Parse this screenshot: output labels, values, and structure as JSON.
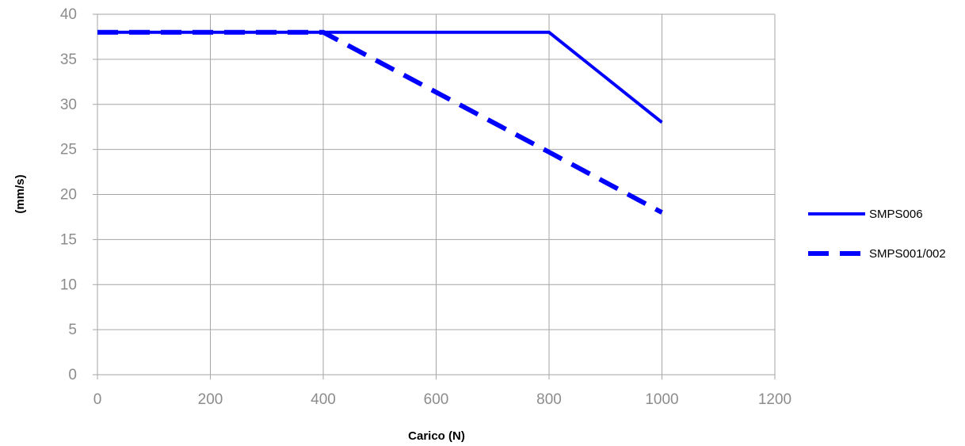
{
  "chart_data": {
    "type": "line",
    "title": "",
    "xlabel": "Carico (N)",
    "ylabel": "(mm/s)",
    "xlim": [
      0,
      1200
    ],
    "ylim": [
      0,
      40
    ],
    "xticks": [
      "0",
      "200",
      "400",
      "600",
      "800",
      "1000",
      "1200"
    ],
    "yticks": [
      "0",
      "5",
      "10",
      "15",
      "20",
      "25",
      "30",
      "35",
      "40"
    ],
    "grid": true,
    "legend_position": "right",
    "series": [
      {
        "name": "SMPS006",
        "style": "solid",
        "color": "#0000ff",
        "points": [
          [
            0,
            38
          ],
          [
            800,
            38
          ],
          [
            1000,
            28
          ]
        ]
      },
      {
        "name": "SMPS001/002",
        "style": "dashed",
        "color": "#0000ff",
        "points": [
          [
            0,
            38
          ],
          [
            400,
            38
          ],
          [
            800,
            24.7
          ],
          [
            1000,
            18
          ]
        ]
      }
    ]
  }
}
